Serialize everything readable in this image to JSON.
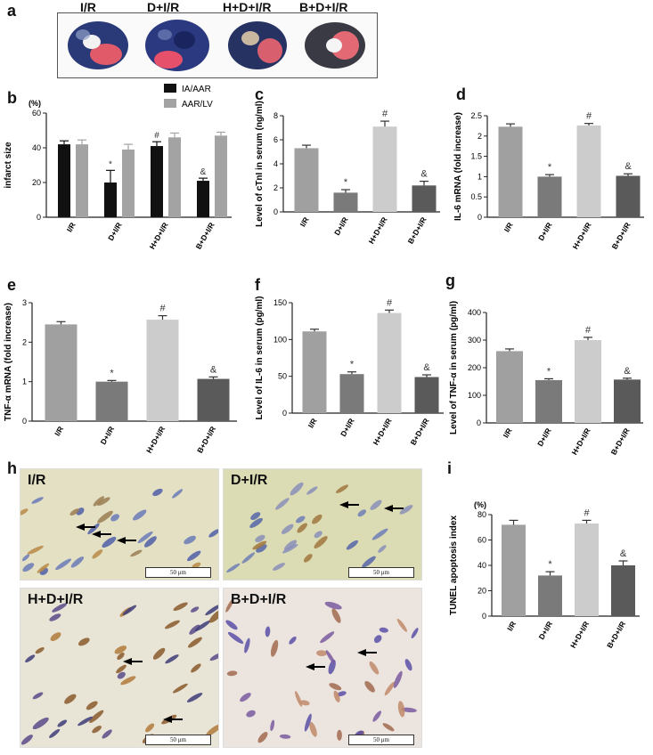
{
  "panel_letters": {
    "a": "a",
    "b": "b",
    "c": "c",
    "d": "d",
    "e": "e",
    "f": "f",
    "g": "g",
    "h": "h",
    "i": "i"
  },
  "groups": [
    "I/R",
    "D+I/R",
    "H+D+I/R",
    "B+D+I/R"
  ],
  "heart_photos": [
    {
      "label": "I/R"
    },
    {
      "label": "D+I/R"
    },
    {
      "label": "H+D+I/R"
    },
    {
      "label": "B+D+I/R"
    }
  ],
  "micrographs": [
    {
      "label": "I/R",
      "scale": "50 μm"
    },
    {
      "label": "D+I/R",
      "scale": "50 μm"
    },
    {
      "label": "H+D+I/R",
      "scale": "50 μm"
    },
    {
      "label": "B+D+I/R",
      "scale": "50 μm"
    }
  ],
  "colors": {
    "black": "#111111",
    "grey_b": "#a3a3a3",
    "c1": "#a0a0a0",
    "c2": "#7a7a7a",
    "c3": "#cccccc",
    "c4": "#5a5a5a"
  },
  "chart_data": [
    {
      "id": "b",
      "type": "bar",
      "ylabel": "infarct size",
      "unit": "(%)",
      "ylim": [
        0,
        60
      ],
      "yticks": [
        0,
        20,
        40,
        60
      ],
      "categories": [
        "I/R",
        "D+I/R",
        "H+D+I/R",
        "B+D+I/R"
      ],
      "series": [
        {
          "name": "IA/AAR",
          "values": [
            42,
            20,
            41,
            21
          ],
          "errors": [
            2,
            7,
            2.5,
            1.5
          ]
        },
        {
          "name": "AAR/LV",
          "values": [
            42,
            39,
            46,
            47
          ],
          "errors": [
            2.5,
            3,
            2.5,
            2
          ]
        }
      ],
      "annotations": [
        "",
        "*",
        "#",
        "&"
      ],
      "legend": "top"
    },
    {
      "id": "c",
      "type": "bar",
      "ylabel": "Level of cTnI in serum (ng/ml)",
      "ylim": [
        0,
        8
      ],
      "yticks": [
        0,
        2,
        4,
        6,
        8
      ],
      "categories": [
        "I/R",
        "D+I/R",
        "H+D+I/R",
        "B+D+I/R"
      ],
      "values": [
        5.3,
        1.6,
        7.1,
        2.2
      ],
      "errors": [
        0.25,
        0.25,
        0.45,
        0.35
      ],
      "annotations": [
        "",
        "*",
        "#",
        "&"
      ]
    },
    {
      "id": "d",
      "type": "bar",
      "ylabel": "IL-6 mRNA (fold increase)",
      "ylim": [
        0,
        2.5
      ],
      "yticks": [
        0,
        0.5,
        1.0,
        1.5,
        2.0,
        2.5
      ],
      "categories": [
        "I/R",
        "D+I/R",
        "H+D+I/R",
        "B+D+I/R"
      ],
      "values": [
        2.23,
        1.0,
        2.26,
        1.02
      ],
      "errors": [
        0.07,
        0.05,
        0.05,
        0.05
      ],
      "annotations": [
        "",
        "*",
        "#",
        "&"
      ]
    },
    {
      "id": "e",
      "type": "bar",
      "ylabel": "TNF-α mRNA (fold increase)",
      "ylim": [
        0,
        3
      ],
      "yticks": [
        0,
        1,
        2,
        3
      ],
      "categories": [
        "I/R",
        "D+I/R",
        "H+D+I/R",
        "B+D+I/R"
      ],
      "values": [
        2.45,
        1.0,
        2.57,
        1.07
      ],
      "errors": [
        0.07,
        0.03,
        0.1,
        0.05
      ],
      "annotations": [
        "",
        "*",
        "#",
        "&"
      ]
    },
    {
      "id": "f",
      "type": "bar",
      "ylabel": "Level of IL-6 in serum (pg/ml)",
      "ylim": [
        0,
        150
      ],
      "yticks": [
        0,
        50,
        100,
        150
      ],
      "categories": [
        "I/R",
        "D+I/R",
        "H+D+I/R",
        "B+D+I/R"
      ],
      "values": [
        111,
        53,
        136,
        49
      ],
      "errors": [
        3,
        3,
        4,
        3
      ],
      "annotations": [
        "",
        "*",
        "#",
        "&"
      ]
    },
    {
      "id": "g",
      "type": "bar",
      "ylabel": "Level of TNF-α in serum (pg/ml)",
      "ylim": [
        0,
        400
      ],
      "yticks": [
        0,
        100,
        200,
        300,
        400
      ],
      "categories": [
        "I/R",
        "D+I/R",
        "H+D+I/R",
        "B+D+I/R"
      ],
      "values": [
        260,
        155,
        300,
        157
      ],
      "errors": [
        8,
        5,
        10,
        5
      ],
      "annotations": [
        "",
        "*",
        "#",
        "&"
      ]
    },
    {
      "id": "i",
      "type": "bar",
      "ylabel": "TUNEL apoptosis index",
      "unit": "(%)",
      "ylim": [
        0,
        80
      ],
      "yticks": [
        0,
        20,
        40,
        60,
        80
      ],
      "categories": [
        "I/R",
        "D+I/R",
        "H+D+I/R",
        "B+D+I/R"
      ],
      "values": [
        72,
        32,
        73,
        40
      ],
      "errors": [
        3.5,
        3,
        2.5,
        3.5
      ],
      "annotations": [
        "",
        "*",
        "#",
        "&"
      ]
    }
  ]
}
